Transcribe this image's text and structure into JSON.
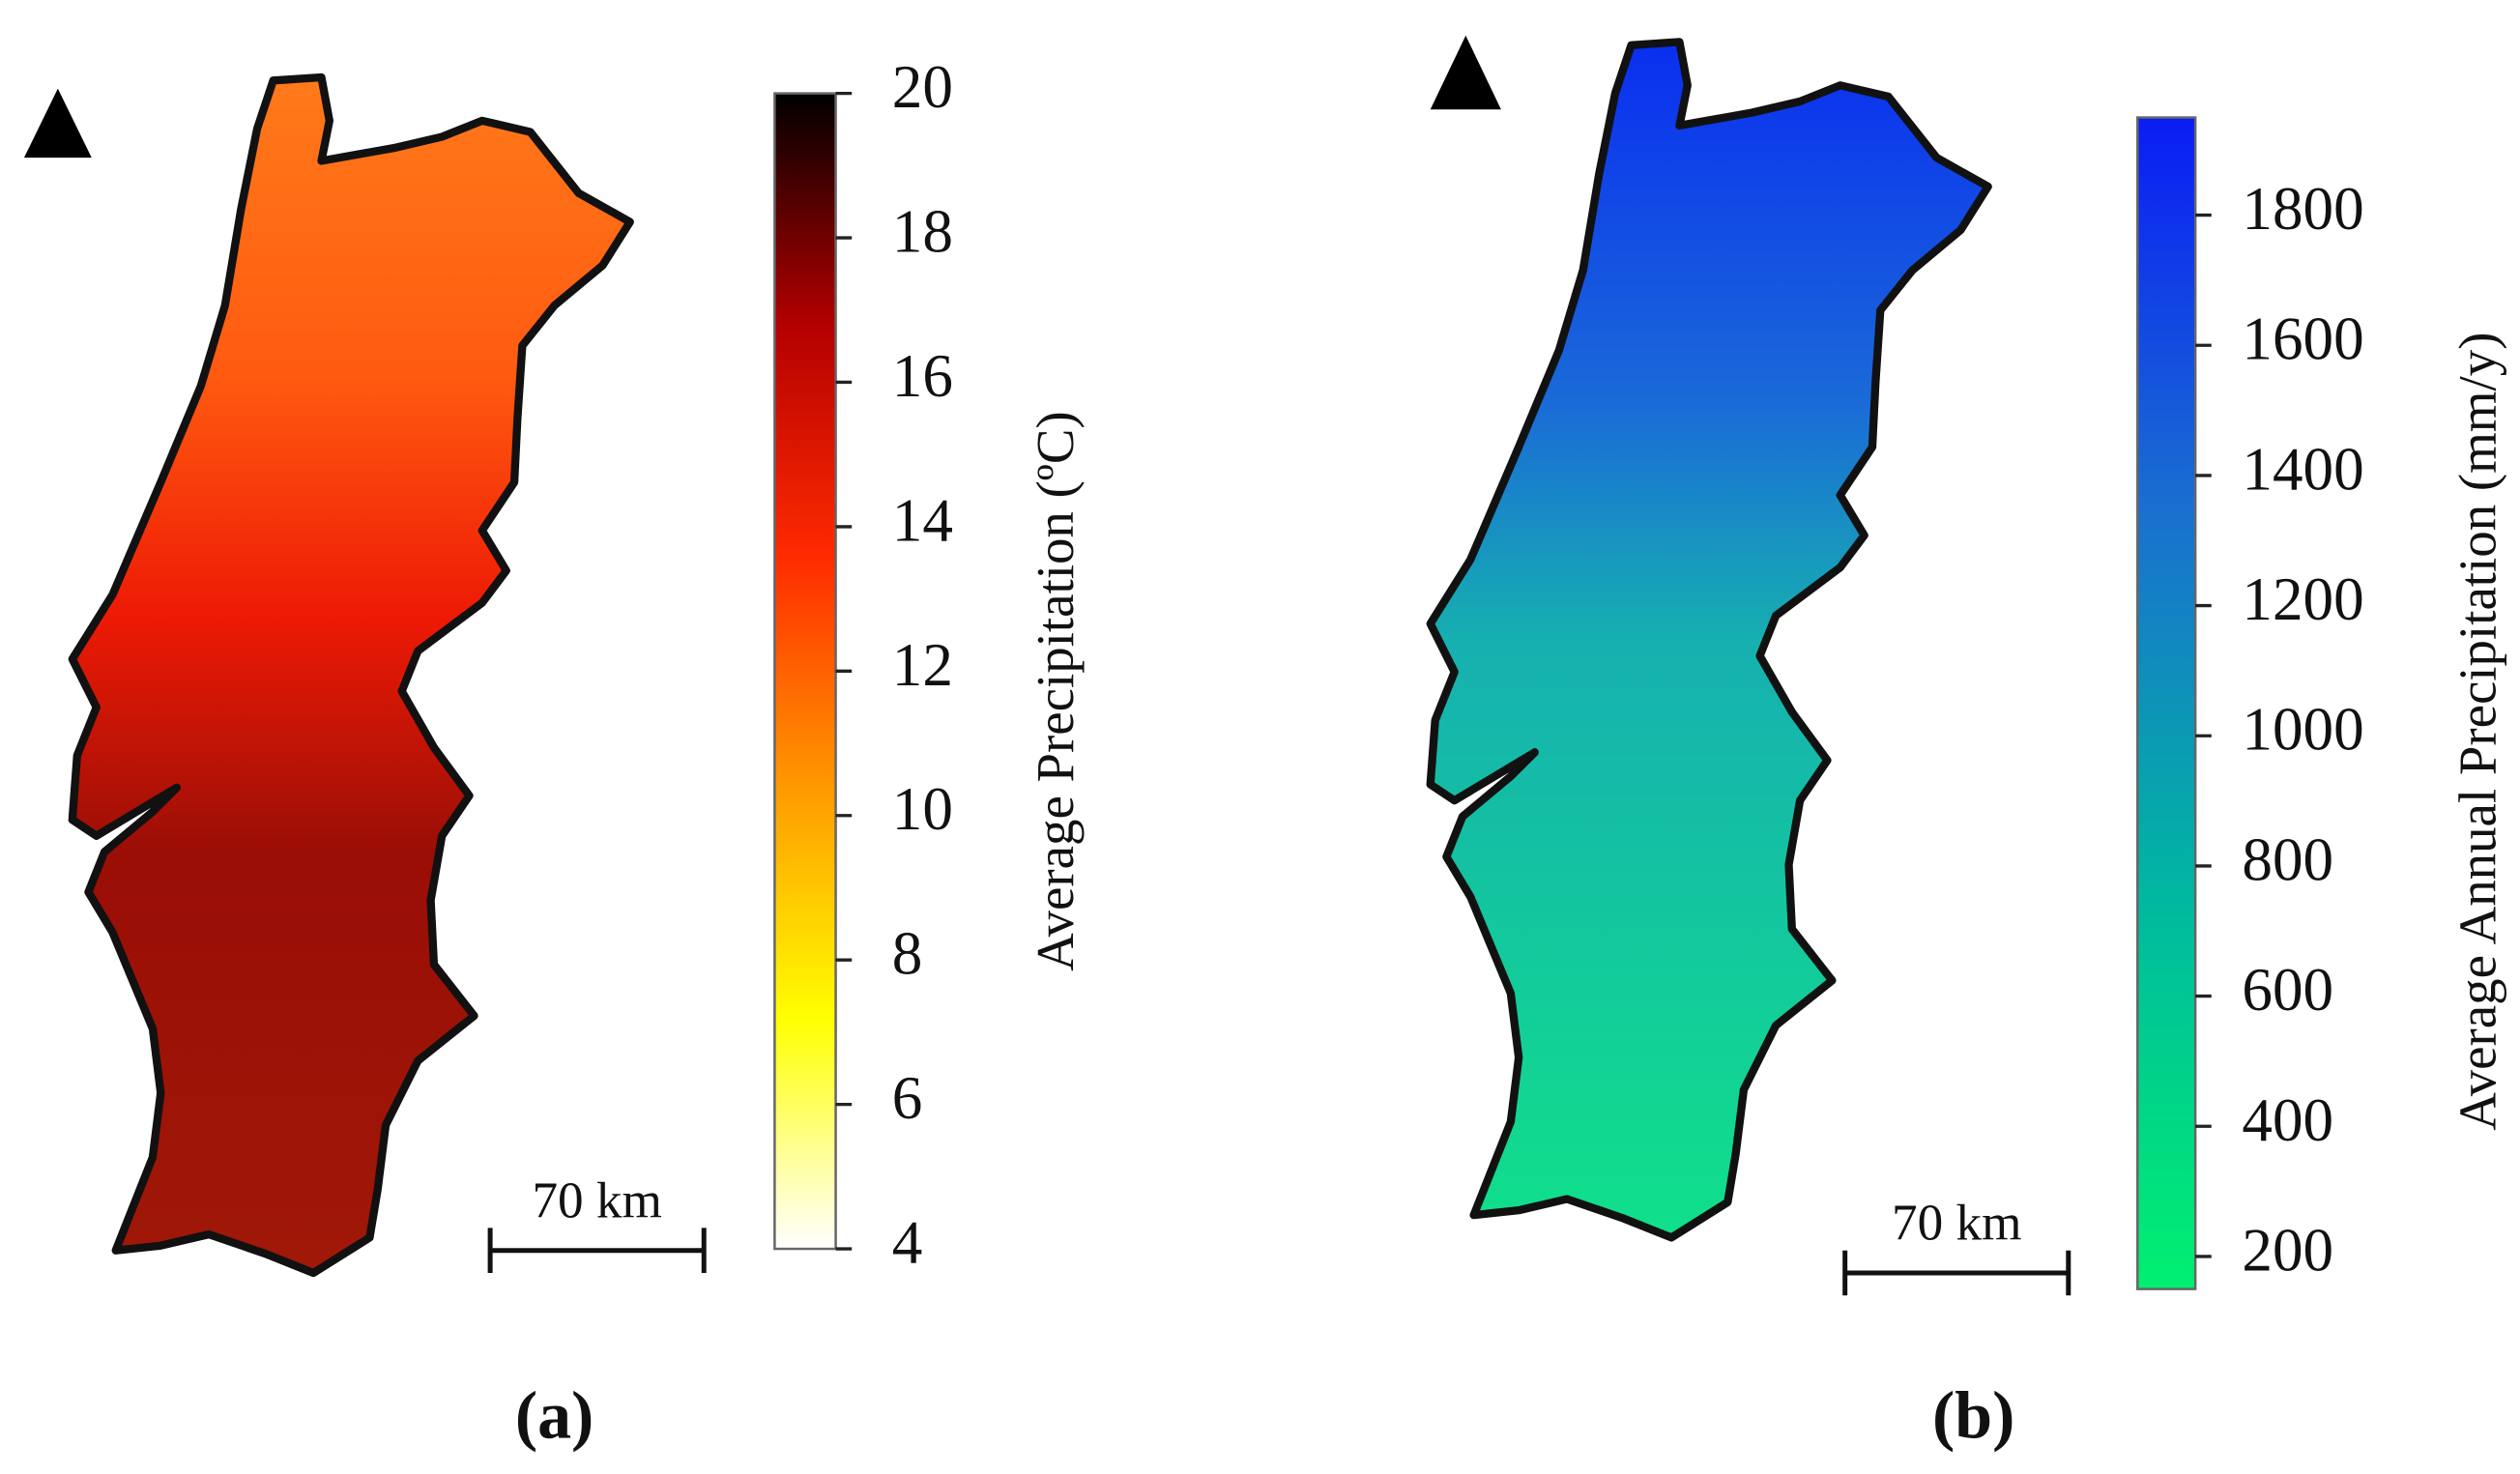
{
  "panels": [
    {
      "label": "(a)",
      "scale_bar": "70 km",
      "colorbar": {
        "title": "Average  Precipitation (ºC)",
        "lim": [
          4,
          20
        ],
        "ticks": [
          4,
          6,
          8,
          10,
          12,
          14,
          16,
          18,
          20
        ],
        "colormap": [
          "#ffffff",
          "#ffff00",
          "#ff9900",
          "#ff2a00",
          "#b30000",
          "#000000"
        ]
      }
    },
    {
      "label": "(b)",
      "scale_bar": "70 km",
      "colorbar": {
        "title": "Average Annual Precipitation (mm/y)",
        "lim": [
          150,
          1950
        ],
        "ticks": [
          200,
          400,
          600,
          800,
          1000,
          1200,
          1400,
          1600,
          1800
        ],
        "colormap": [
          "#00f070",
          "#00b8a0",
          "#1a6fd0",
          "#0a1cf5"
        ]
      }
    }
  ]
}
